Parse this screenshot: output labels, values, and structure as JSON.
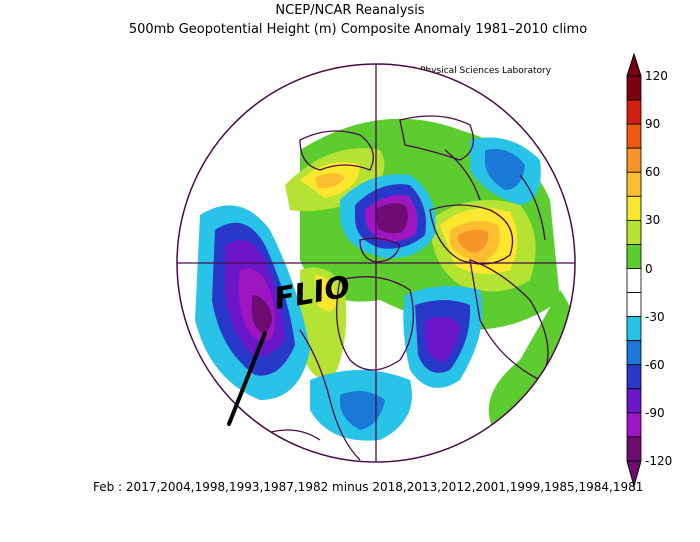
{
  "header": {
    "title": "NCEP/NCAR Reanalysis",
    "subtitle": "500mb Geopotential Height (m) Composite Anomaly 1981–2010 climo",
    "credit": "NOAA Physical Sciences Laboratory"
  },
  "footer": {
    "text": "Feb : 2017,2004,1998,1993,1987,1982 minus 2018,2013,2012,2001,1999,1985,1984,1981"
  },
  "annotation": {
    "text": "FLIO"
  },
  "colorbar": {
    "labels": [
      "120",
      "90",
      "60",
      "30",
      "0",
      "-30",
      "-60",
      "-90",
      "-120"
    ],
    "colors": [
      "#7a0010",
      "#d41e0f",
      "#ee5a14",
      "#f9942a",
      "#fcbd2e",
      "#fbe72e",
      "#b4e334",
      "#5ccc2f",
      "#ffffff",
      "#ffffff",
      "#29c3e8",
      "#1a78d6",
      "#2839c9",
      "#6b17c9",
      "#9d16c2",
      "#6f0c72"
    ]
  },
  "map": {
    "projection": "north-polar-stereographic",
    "field": "500mb geopotential height anomaly",
    "units": "m"
  }
}
